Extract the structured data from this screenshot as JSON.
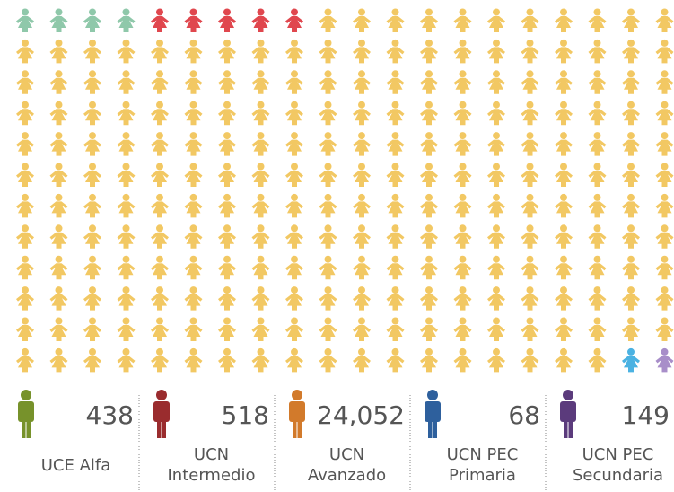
{
  "chart_data": {
    "type": "pictogram",
    "columns": 20,
    "series": [
      {
        "name": "UCE Alfa",
        "value": 438,
        "icons": 4,
        "color": "#8fc8aa",
        "legend_color": "#77922b"
      },
      {
        "name": "UCN Intermedio",
        "value": 518,
        "icons": 5,
        "color": "#e0474e",
        "legend_color": "#9a2c2e"
      },
      {
        "name": "UCN Avanzado",
        "value": 24052,
        "value_label": "24,052",
        "icons": 229,
        "color": "#f2c863",
        "legend_color": "#d27a2b"
      },
      {
        "name": "UCN PEC Primaria",
        "value": 68,
        "icons": 1,
        "color": "#4bb2e2",
        "legend_color": "#2e609d"
      },
      {
        "name": "UCN PEC Secundaria",
        "value": 149,
        "icons": 1,
        "color": "#a88ec9",
        "legend_color": "#5b3b7c"
      }
    ]
  }
}
